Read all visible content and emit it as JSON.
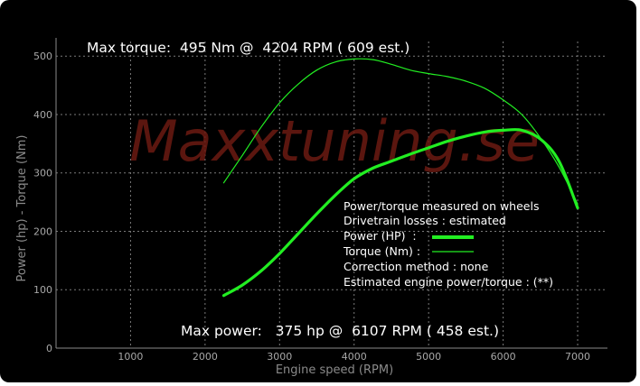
{
  "chart_data": {
    "type": "line",
    "watermark": "Maxxtuning.se",
    "max_torque_text": "Max torque:  495 Nm @  4204 RPM ( 609 est.)",
    "max_power_text": "Max power:   375 hp @  6107 RPM ( 458 est.)",
    "xlabel": "Engine speed (RPM)",
    "ylabel": "Power (hp)  - Torque (Nm)",
    "xlim": [
      0,
      7400
    ],
    "ylim": [
      0,
      525
    ],
    "x_ticks": [
      "1000",
      "2000",
      "3000",
      "4000",
      "5000",
      "6000",
      "7000"
    ],
    "y_ticks": [
      "0",
      "100",
      "200",
      "300",
      "400",
      "500"
    ],
    "grid": true,
    "legend": {
      "placement": "center-right",
      "lines": [
        "Power/torque measured on wheels",
        "Drivetrain losses : estimated",
        "Power (HP)  :",
        "Torque (Nm) :",
        "Correction method : none",
        "Estimated engine power/torque : (**)"
      ]
    },
    "series": [
      {
        "name": "Power (HP)",
        "color": "#22ee22",
        "x": [
          2250,
          2500,
          2750,
          3000,
          3250,
          3500,
          3750,
          4000,
          4250,
          4500,
          4750,
          5000,
          5250,
          5500,
          5750,
          6000,
          6250,
          6500,
          6750,
          7000
        ],
        "values": [
          90,
          108,
          132,
          162,
          196,
          230,
          262,
          290,
          308,
          320,
          332,
          343,
          354,
          363,
          370,
          373,
          373,
          358,
          320,
          240
        ]
      },
      {
        "name": "Torque (Nm)",
        "color": "#22ee22",
        "x": [
          2250,
          2500,
          2750,
          3000,
          3250,
          3500,
          3750,
          4000,
          4250,
          4500,
          4750,
          5000,
          5250,
          5500,
          5750,
          6000,
          6250,
          6500,
          6750,
          7000
        ],
        "values": [
          283,
          330,
          378,
          420,
          452,
          476,
          490,
          495,
          494,
          486,
          476,
          470,
          465,
          457,
          445,
          425,
          400,
          360,
          310,
          247
        ]
      }
    ]
  }
}
